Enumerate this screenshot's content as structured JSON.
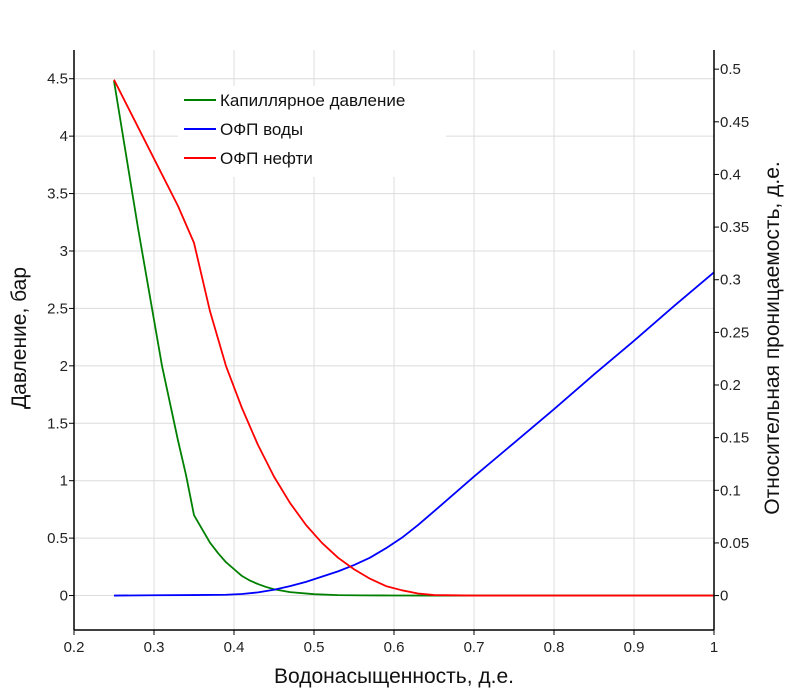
{
  "chart_data": {
    "type": "line",
    "xlabel": "Водонасыщенность, д.е.",
    "ylabel": "Давление, бар",
    "y2label": "Относительная проницаемость, д.е.",
    "xlim": [
      0.2,
      1.0
    ],
    "ylim": [
      -0.3,
      4.75
    ],
    "y2lim": [
      -0.0327,
      0.5182
    ],
    "x_ticks": [
      "0.2",
      "0.3",
      "0.4",
      "0.5",
      "0.6",
      "0.7",
      "0.8",
      "0.9",
      "1"
    ],
    "y_ticks": [
      "0",
      "0.5",
      "1",
      "1.5",
      "2",
      "2.5",
      "3",
      "3.5",
      "4",
      "4.5"
    ],
    "y2_ticks": [
      "0",
      "0.05",
      "0.1",
      "0.15",
      "0.2",
      "0.25",
      "0.3",
      "0.35",
      "0.4",
      "0.45",
      "0.5"
    ],
    "grid": true,
    "legend_position": "top-left",
    "series": [
      {
        "name": "Капиллярное давление",
        "axis": "left",
        "color": "#008000",
        "x": [
          0.25,
          0.28,
          0.31,
          0.33,
          0.34,
          0.35,
          0.36,
          0.37,
          0.38,
          0.39,
          0.4,
          0.41,
          0.42,
          0.43,
          0.44,
          0.45,
          0.47,
          0.5,
          0.53,
          0.56,
          0.6,
          0.65,
          0.7,
          0.8,
          0.9,
          1.0
        ],
        "values": [
          4.48,
          3.2,
          2.0,
          1.35,
          1.05,
          0.7,
          0.58,
          0.46,
          0.37,
          0.29,
          0.23,
          0.17,
          0.13,
          0.1,
          0.075,
          0.055,
          0.03,
          0.012,
          0.004,
          0.0015,
          0.0005,
          0.0,
          0.0,
          0.0,
          0.0,
          0.0
        ]
      },
      {
        "name": "ОФП воды",
        "axis": "right",
        "color": "#0000ff",
        "x": [
          0.25,
          0.3,
          0.35,
          0.39,
          0.41,
          0.43,
          0.45,
          0.47,
          0.49,
          0.51,
          0.53,
          0.55,
          0.57,
          0.59,
          0.61,
          0.63,
          0.65,
          0.7,
          0.75,
          0.8,
          0.85,
          0.9,
          0.95,
          1.0
        ],
        "values": [
          0.0,
          0.0003,
          0.0005,
          0.0008,
          0.0015,
          0.003,
          0.0055,
          0.009,
          0.013,
          0.018,
          0.023,
          0.029,
          0.036,
          0.045,
          0.055,
          0.067,
          0.08,
          0.113,
          0.145,
          0.177,
          0.21,
          0.242,
          0.275,
          0.307
        ]
      },
      {
        "name": "ОФП нефти",
        "axis": "right",
        "color": "#ff0000",
        "x": [
          0.25,
          0.28,
          0.31,
          0.33,
          0.35,
          0.37,
          0.39,
          0.41,
          0.43,
          0.45,
          0.47,
          0.49,
          0.51,
          0.53,
          0.55,
          0.57,
          0.59,
          0.61,
          0.63,
          0.65,
          0.7,
          0.8,
          0.9,
          1.0
        ],
        "values": [
          0.49,
          0.445,
          0.4,
          0.37,
          0.335,
          0.27,
          0.218,
          0.178,
          0.143,
          0.113,
          0.088,
          0.067,
          0.05,
          0.036,
          0.025,
          0.016,
          0.009,
          0.005,
          0.002,
          0.0005,
          0.0,
          0.0,
          0.0,
          0.0
        ]
      }
    ]
  }
}
